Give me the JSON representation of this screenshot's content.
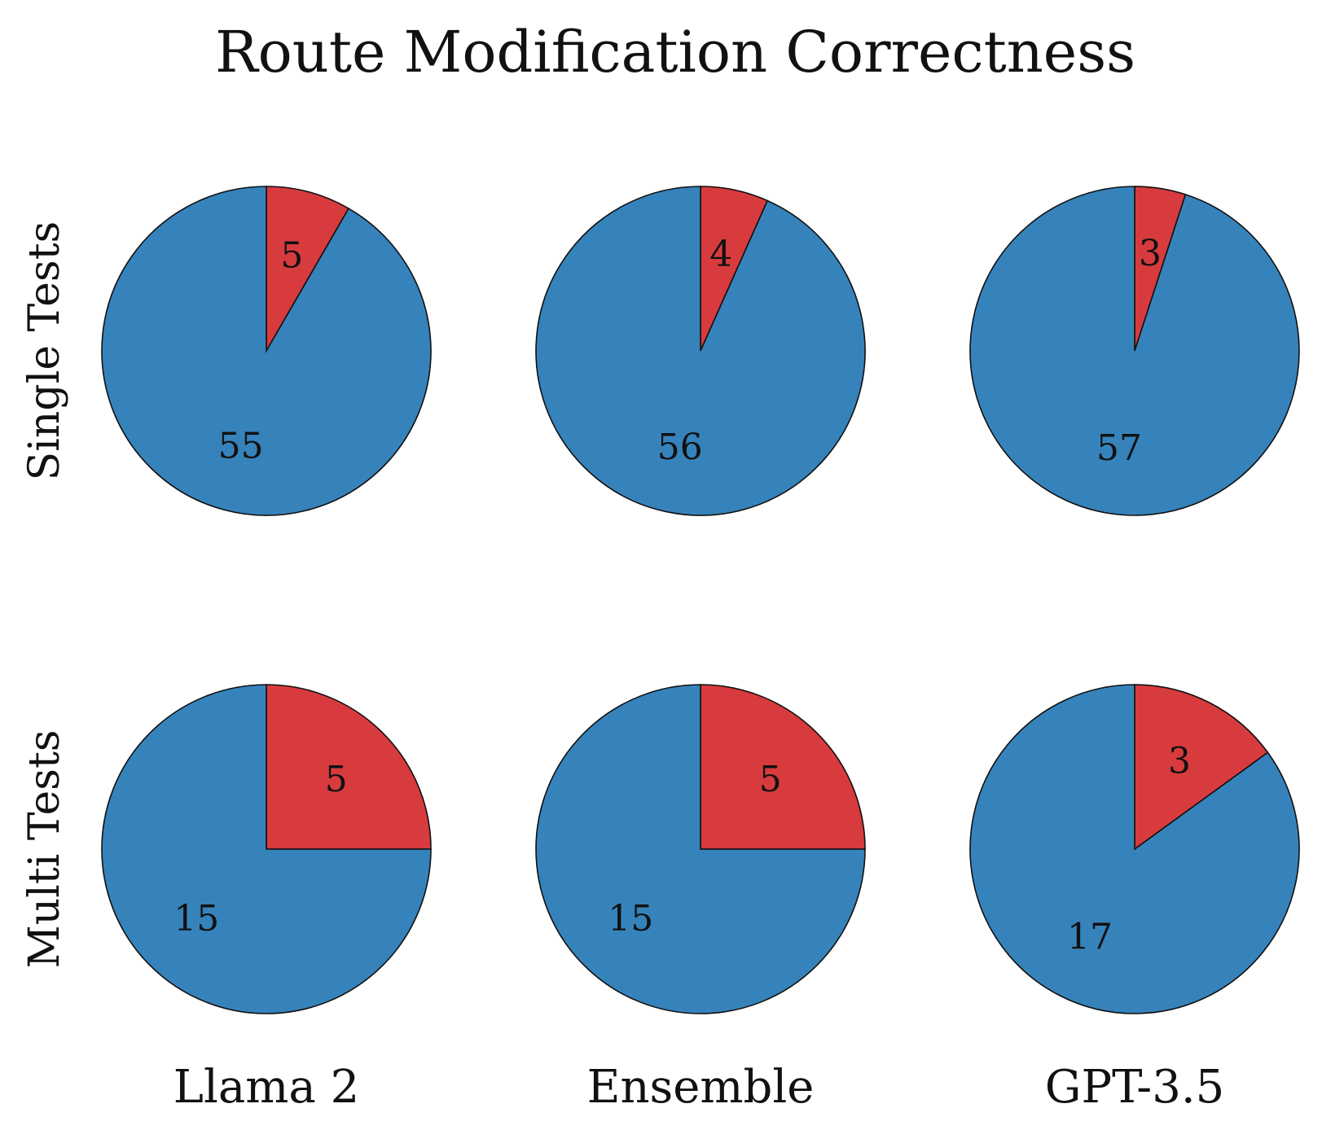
{
  "chart_data": {
    "type": "pie",
    "title": "Route Modification Correctness",
    "rows": [
      "Single Tests",
      "Multi Tests"
    ],
    "columns": [
      "Llama 2",
      "Ensemble",
      "GPT-3.5"
    ],
    "start_angle": "12 o'clock",
    "direction": "clockwise",
    "colors": {
      "red": "#d83b3e",
      "blue": "#3683bb"
    },
    "pies": [
      {
        "row": "Single Tests",
        "column": "Llama 2",
        "slices": [
          {
            "color": "red",
            "value": 5
          },
          {
            "color": "blue",
            "value": 55
          }
        ]
      },
      {
        "row": "Single Tests",
        "column": "Ensemble",
        "slices": [
          {
            "color": "red",
            "value": 4
          },
          {
            "color": "blue",
            "value": 56
          }
        ]
      },
      {
        "row": "Single Tests",
        "column": "GPT-3.5",
        "slices": [
          {
            "color": "red",
            "value": 3
          },
          {
            "color": "blue",
            "value": 57
          }
        ]
      },
      {
        "row": "Multi Tests",
        "column": "Llama 2",
        "slices": [
          {
            "color": "red",
            "value": 5
          },
          {
            "color": "blue",
            "value": 15
          }
        ]
      },
      {
        "row": "Multi Tests",
        "column": "Ensemble",
        "slices": [
          {
            "color": "red",
            "value": 5
          },
          {
            "color": "blue",
            "value": 15
          }
        ]
      },
      {
        "row": "Multi Tests",
        "column": "GPT-3.5",
        "slices": [
          {
            "color": "red",
            "value": 3
          },
          {
            "color": "blue",
            "value": 17
          }
        ]
      }
    ]
  }
}
